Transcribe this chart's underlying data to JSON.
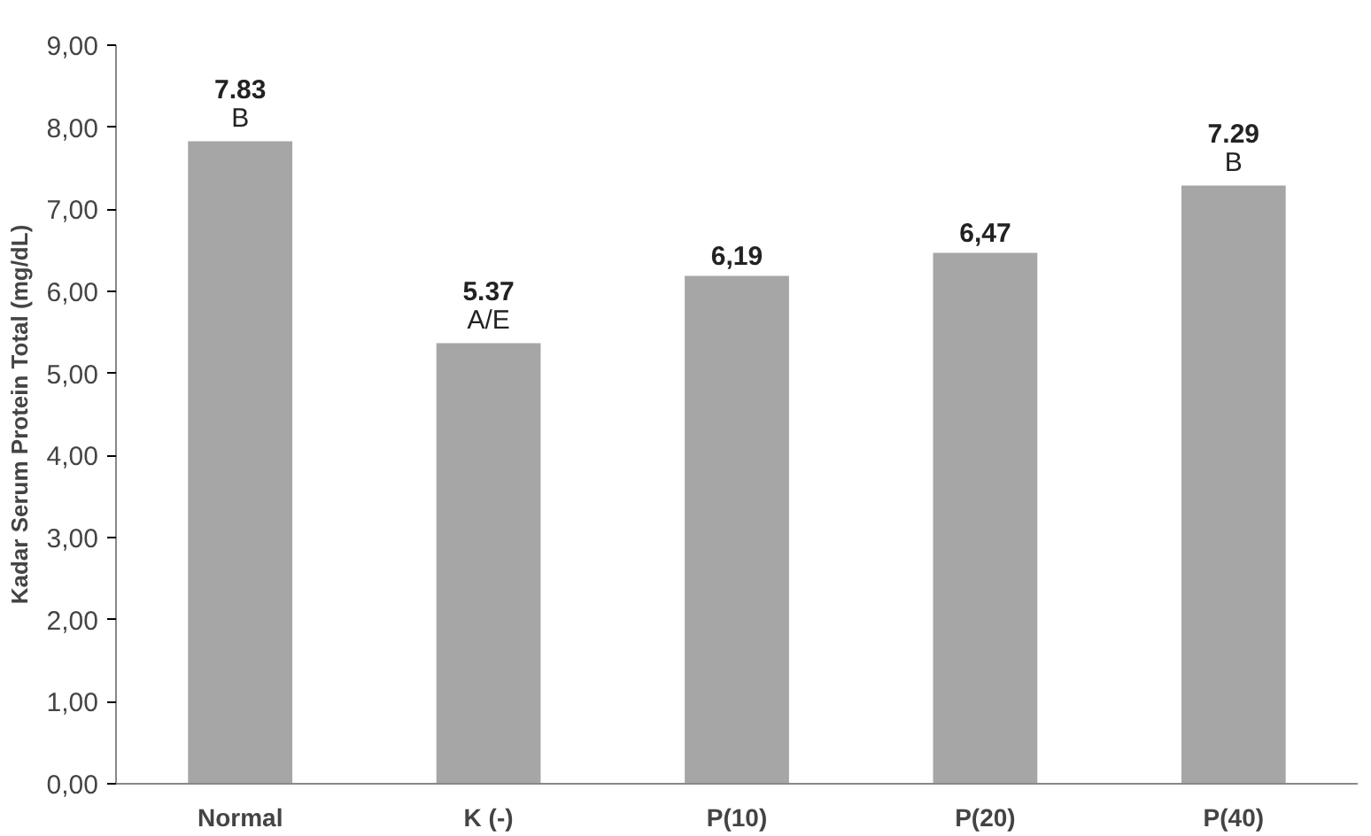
{
  "chart_data": {
    "type": "bar",
    "ylabel": "Kadar Serum Protein Total (mg/dL)",
    "categories": [
      "Normal",
      "K (-)",
      "P(10)",
      "P(20)",
      "P(40)"
    ],
    "values": [
      7.83,
      5.37,
      6.19,
      6.47,
      7.29
    ],
    "value_labels": [
      "7.83",
      "5.37",
      "6,19",
      "6,47",
      "7.29"
    ],
    "color": "#a6a6a6",
    "ylim": [
      0,
      9
    ],
    "yticks": [
      {
        "value": 0,
        "label": "0,00"
      },
      {
        "value": 1,
        "label": "1,00"
      },
      {
        "value": 2,
        "label": "2,00"
      },
      {
        "value": 3,
        "label": "3,00"
      },
      {
        "value": 4,
        "label": "4,00"
      },
      {
        "value": 5,
        "label": "5,00"
      },
      {
        "value": 6,
        "label": "6,00"
      },
      {
        "value": 7,
        "label": "7,00"
      },
      {
        "value": 8,
        "label": "8,00"
      },
      {
        "value": 9,
        "label": "9,00"
      }
    ],
    "annotations": [
      {
        "text": "B",
        "x": "Normal",
        "y": 7.83
      },
      {
        "text": "A/E",
        "x": "K (-)",
        "y": 5.37
      },
      {
        "text": "B",
        "x": "P(40)",
        "y": 7.29
      }
    ],
    "grid": false
  }
}
